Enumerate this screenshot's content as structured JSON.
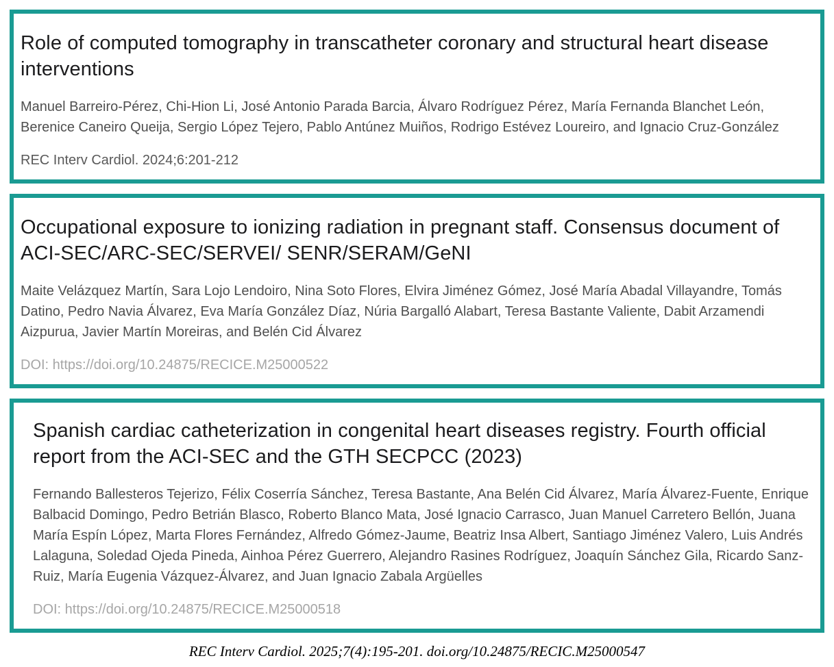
{
  "accent_color": "#1a9b93",
  "articles": [
    {
      "title": "Role of computed tomography in transcatheter coronary and structural heart disease interventions",
      "authors": "Manuel Barreiro-Pérez, Chi-Hion Li, José Antonio Parada Barcia, Álvaro Rodríguez Pérez, María Fernanda Blanchet León, Berenice Caneiro Queija, Sergio López Tejero, Pablo Antúnez Muiños, Rodrigo Estévez Loureiro, and Ignacio Cruz-González",
      "citation": "REC Interv Cardiol. 2024;6:201-212"
    },
    {
      "title": "Occupational exposure to ionizing radiation in pregnant staff. Consensus document of ACI-SEC/ARC-SEC/SERVEI/ SENR/SERAM/GeNI",
      "authors": "Maite Velázquez Martín, Sara Lojo Lendoiro, Nina Soto Flores, Elvira Jiménez Gómez, José María Abadal Villayandre, Tomás Datino, Pedro Navia Álvarez, Eva María González Díaz, Núria Bargalló Alabart, Teresa Bastante Valiente, Dabit Arzamendi Aizpurua, Javier Martín Moreiras, and Belén Cid Álvarez",
      "citation": "DOI: https://doi.org/10.24875/RECICE.M25000522"
    },
    {
      "title": "Spanish cardiac catheterization in congenital heart diseases registry. Fourth official report from the ACI-SEC and the GTH SECPCC (2023)",
      "authors": "Fernando Ballesteros Tejerizo, Félix Coserría Sánchez, Teresa Bastante, Ana Belén Cid Álvarez, María Álvarez-Fuente, Enrique Balbacid Domingo, Pedro Betrián Blasco, Roberto Blanco Mata, José Ignacio Carrasco, Juan Manuel Carretero Bellón, Juana María Espín López, Marta Flores Fernández, Alfredo Gómez-Jaume, Beatriz Insa Albert, Santiago Jiménez Valero, Luis Andrés Lalaguna, Soledad Ojeda Pineda, Ainhoa Pérez Guerrero, Alejandro Rasines Rodríguez, Joaquín Sánchez Gila, Ricardo Sanz-Ruiz, María Eugenia Vázquez-Álvarez, and Juan Ignacio Zabala Argüelles",
      "citation": "DOI: https://doi.org/10.24875/RECICE.M25000518"
    }
  ],
  "footer_citation": "REC Interv Cardiol. 2025;7(4):195-201. doi.org/10.24875/RECIC.M25000547"
}
